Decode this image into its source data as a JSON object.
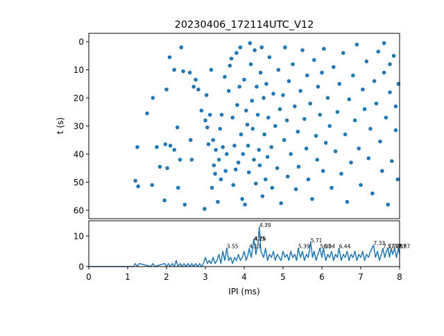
{
  "chart_data": [
    {
      "type": "scatter",
      "title": "20230406_172114UTC_V12",
      "ylabel": "t (s)",
      "xlim": [
        0,
        8
      ],
      "ylim": [
        63,
        -3
      ],
      "yticks": [
        0,
        10,
        20,
        30,
        40,
        50,
        60
      ],
      "color": "#1f77b4",
      "points": [
        [
          1.2,
          49.5
        ],
        [
          1.25,
          37.5
        ],
        [
          1.27,
          51.5
        ],
        [
          1.5,
          25.5
        ],
        [
          1.65,
          20
        ],
        [
          1.63,
          51
        ],
        [
          1.75,
          37.5
        ],
        [
          1.83,
          44.5
        ],
        [
          1.95,
          56.5
        ],
        [
          1.97,
          36.5
        ],
        [
          2.0,
          17
        ],
        [
          2.02,
          45
        ],
        [
          2.08,
          5.5
        ],
        [
          2.1,
          37
        ],
        [
          2.2,
          38.5
        ],
        [
          2.2,
          10
        ],
        [
          2.28,
          30.5
        ],
        [
          2.3,
          52
        ],
        [
          2.35,
          42
        ],
        [
          2.38,
          2
        ],
        [
          2.43,
          10.5
        ],
        [
          2.47,
          58
        ],
        [
          2.6,
          11
        ],
        [
          2.62,
          35
        ],
        [
          2.65,
          42
        ],
        [
          2.7,
          16
        ],
        [
          2.75,
          13.5
        ],
        [
          2.82,
          17
        ],
        [
          2.9,
          24.5
        ],
        [
          2.98,
          59.5
        ],
        [
          3.0,
          28
        ],
        [
          3.03,
          19
        ],
        [
          3.05,
          30.5
        ],
        [
          3.08,
          36.5
        ],
        [
          3.12,
          26
        ],
        [
          3.15,
          10
        ],
        [
          3.17,
          52
        ],
        [
          3.2,
          35
        ],
        [
          3.22,
          44
        ],
        [
          3.25,
          47
        ],
        [
          3.27,
          38.5
        ],
        [
          3.32,
          57
        ],
        [
          3.35,
          42
        ],
        [
          3.38,
          31
        ],
        [
          3.4,
          49
        ],
        [
          3.42,
          26
        ],
        [
          3.45,
          37.5
        ],
        [
          3.5,
          12.5
        ],
        [
          3.52,
          46
        ],
        [
          3.55,
          40
        ],
        [
          3.6,
          17.5
        ],
        [
          3.63,
          8.5
        ],
        [
          3.67,
          6
        ],
        [
          3.7,
          27
        ],
        [
          3.72,
          51
        ],
        [
          3.75,
          37
        ],
        [
          3.78,
          45.5
        ],
        [
          3.8,
          4
        ],
        [
          3.82,
          22.5
        ],
        [
          3.85,
          43
        ],
        [
          3.88,
          16
        ],
        [
          3.9,
          2
        ],
        [
          3.92,
          33
        ],
        [
          3.95,
          56
        ],
        [
          3.97,
          40
        ],
        [
          4.0,
          13.5
        ],
        [
          4.02,
          58
        ],
        [
          4.05,
          24.5
        ],
        [
          4.08,
          29.5
        ],
        [
          4.1,
          37
        ],
        [
          4.12,
          46.5
        ],
        [
          4.15,
          0.5
        ],
        [
          4.17,
          8
        ],
        [
          4.2,
          21
        ],
        [
          4.22,
          31
        ],
        [
          4.25,
          42
        ],
        [
          4.27,
          3
        ],
        [
          4.3,
          50.5
        ],
        [
          4.32,
          16
        ],
        [
          4.35,
          26
        ],
        [
          4.38,
          38.5
        ],
        [
          4.4,
          44
        ],
        [
          4.42,
          11
        ],
        [
          4.45,
          2
        ],
        [
          4.47,
          55
        ],
        [
          4.5,
          20
        ],
        [
          4.52,
          33
        ],
        [
          4.55,
          49
        ],
        [
          4.57,
          15
        ],
        [
          4.6,
          41
        ],
        [
          4.62,
          27
        ],
        [
          4.65,
          5.5
        ],
        [
          4.7,
          37.5
        ],
        [
          4.72,
          52
        ],
        [
          4.75,
          18.5
        ],
        [
          4.8,
          30
        ],
        [
          4.85,
          45
        ],
        [
          4.88,
          10
        ],
        [
          4.92,
          24
        ],
        [
          4.95,
          57.5
        ],
        [
          5.0,
          19
        ],
        [
          5.03,
          35
        ],
        [
          5.05,
          2
        ],
        [
          5.1,
          28
        ],
        [
          5.12,
          48
        ],
        [
          5.15,
          14
        ],
        [
          5.2,
          40
        ],
        [
          5.25,
          8
        ],
        [
          5.3,
          23
        ],
        [
          5.33,
          52.5
        ],
        [
          5.38,
          32
        ],
        [
          5.4,
          44.5
        ],
        [
          5.45,
          17.5
        ],
        [
          5.5,
          3
        ],
        [
          5.55,
          27.5
        ],
        [
          5.6,
          38
        ],
        [
          5.62,
          12
        ],
        [
          5.65,
          49
        ],
        [
          5.7,
          22
        ],
        [
          5.75,
          56
        ],
        [
          5.8,
          6.5
        ],
        [
          5.85,
          33.5
        ],
        [
          5.88,
          42
        ],
        [
          5.9,
          16
        ],
        [
          5.95,
          26
        ],
        [
          6.0,
          11
        ],
        [
          6.03,
          46
        ],
        [
          6.05,
          2.5
        ],
        [
          6.1,
          36
        ],
        [
          6.15,
          20
        ],
        [
          6.2,
          30
        ],
        [
          6.25,
          52
        ],
        [
          6.3,
          9
        ],
        [
          6.35,
          39
        ],
        [
          6.4,
          25
        ],
        [
          6.45,
          15
        ],
        [
          6.5,
          47
        ],
        [
          6.55,
          4
        ],
        [
          6.6,
          33
        ],
        [
          6.65,
          57
        ],
        [
          6.7,
          20.5
        ],
        [
          6.75,
          43
        ],
        [
          6.8,
          12
        ],
        [
          6.85,
          28
        ],
        [
          6.9,
          1
        ],
        [
          6.95,
          38
        ],
        [
          7.0,
          51
        ],
        [
          7.05,
          17
        ],
        [
          7.1,
          24
        ],
        [
          7.15,
          7
        ],
        [
          7.2,
          41.5
        ],
        [
          7.25,
          31
        ],
        [
          7.3,
          54
        ],
        [
          7.35,
          14
        ],
        [
          7.4,
          22
        ],
        [
          7.45,
          3.5
        ],
        [
          7.5,
          35.5
        ],
        [
          7.55,
          46
        ],
        [
          7.6,
          11
        ],
        [
          7.65,
          27
        ],
        [
          7.7,
          58
        ],
        [
          7.75,
          18
        ],
        [
          7.8,
          42.5
        ],
        [
          7.85,
          5
        ],
        [
          7.9,
          31.5
        ],
        [
          7.95,
          49
        ],
        [
          7.97,
          15
        ],
        [
          7.6,
          0.5
        ],
        [
          7.75,
          8
        ],
        [
          7.9,
          23
        ]
      ]
    },
    {
      "type": "line",
      "xlabel": "IPI (ms)",
      "xlim": [
        0,
        8
      ],
      "ylim": [
        0,
        15
      ],
      "xticks": [
        0,
        1,
        2,
        3,
        4,
        5,
        6,
        7,
        8
      ],
      "yticks": [
        0,
        10
      ],
      "color": "#1f77b4",
      "peaks": [
        {
          "x": 3.55,
          "y": 6.0,
          "label": "3.55"
        },
        {
          "x": 4.13,
          "y": 6.0,
          "label": "4.13"
        },
        {
          "x": 4.25,
          "y": 8.5,
          "label": "4.25"
        },
        {
          "x": 4.26,
          "y": 8.5,
          "label": "4.26"
        },
        {
          "x": 4.39,
          "y": 13.0,
          "label": "4.39"
        },
        {
          "x": 5.39,
          "y": 6.0,
          "label": "5.39"
        },
        {
          "x": 5.71,
          "y": 8.0,
          "label": "5.71"
        },
        {
          "x": 5.95,
          "y": 6.0,
          "label": "5.95"
        },
        {
          "x": 6.04,
          "y": 6.0,
          "label": "6.04"
        },
        {
          "x": 6.44,
          "y": 6.0,
          "label": "6.44"
        },
        {
          "x": 7.33,
          "y": 7.0,
          "label": "7.33"
        },
        {
          "x": 7.57,
          "y": 6.0,
          "label": "7.57"
        },
        {
          "x": 7.7,
          "y": 6.0,
          "label": "7.70"
        },
        {
          "x": 7.78,
          "y": 6.0,
          "label": "7.78"
        },
        {
          "x": 7.87,
          "y": 6.0,
          "label": "7.87"
        },
        {
          "x": 7.97,
          "y": 6.0,
          "label": "7.97"
        }
      ],
      "x": [
        0,
        1.15,
        1.2,
        1.25,
        1.3,
        1.6,
        1.65,
        1.7,
        1.95,
        2.0,
        2.05,
        2.1,
        2.15,
        2.2,
        2.25,
        2.3,
        2.35,
        2.4,
        2.45,
        2.5,
        2.55,
        2.6,
        2.65,
        2.7,
        2.75,
        2.8,
        2.85,
        2.9,
        2.95,
        3.0,
        3.05,
        3.1,
        3.15,
        3.2,
        3.25,
        3.3,
        3.35,
        3.4,
        3.45,
        3.5,
        3.55,
        3.6,
        3.65,
        3.7,
        3.75,
        3.8,
        3.85,
        3.9,
        3.95,
        4.0,
        4.05,
        4.1,
        4.13,
        4.18,
        4.25,
        4.3,
        4.35,
        4.39,
        4.43,
        4.5,
        4.55,
        4.6,
        4.65,
        4.7,
        4.75,
        4.8,
        4.85,
        4.9,
        4.95,
        5.0,
        5.05,
        5.1,
        5.15,
        5.2,
        5.25,
        5.3,
        5.35,
        5.39,
        5.45,
        5.5,
        5.55,
        5.6,
        5.65,
        5.71,
        5.76,
        5.8,
        5.85,
        5.9,
        5.95,
        6.0,
        6.04,
        6.1,
        6.15,
        6.2,
        6.25,
        6.3,
        6.35,
        6.4,
        6.44,
        6.5,
        6.55,
        6.6,
        6.65,
        6.7,
        6.75,
        6.8,
        6.85,
        6.9,
        6.95,
        7.0,
        7.05,
        7.1,
        7.15,
        7.2,
        7.25,
        7.33,
        7.38,
        7.43,
        7.48,
        7.53,
        7.57,
        7.62,
        7.66,
        7.7,
        7.74,
        7.78,
        7.82,
        7.87,
        7.92,
        7.97,
        8.0
      ],
      "y": [
        0,
        0,
        1,
        0,
        1,
        0,
        1,
        0,
        1,
        0,
        1,
        0,
        1,
        0,
        2,
        0,
        1,
        0,
        1,
        0,
        1,
        0,
        1,
        0,
        1,
        0,
        1,
        0,
        1,
        3,
        1,
        2,
        1,
        3,
        1,
        2,
        4,
        1,
        5,
        2,
        6,
        2,
        3,
        1,
        3,
        2,
        4,
        2,
        3,
        5,
        2,
        4,
        6,
        3,
        9,
        4,
        7,
        13,
        5,
        3,
        6,
        2,
        4,
        3,
        5,
        2,
        4,
        3,
        2,
        5,
        3,
        4,
        2,
        5,
        3,
        4,
        2,
        6,
        3,
        5,
        2,
        4,
        3,
        8,
        3,
        5,
        2,
        4,
        6,
        3,
        6,
        2,
        4,
        3,
        5,
        2,
        4,
        3,
        6,
        2,
        4,
        3,
        5,
        2,
        4,
        3,
        5,
        2,
        4,
        3,
        5,
        2,
        4,
        3,
        5,
        7,
        3,
        5,
        2,
        4,
        6,
        3,
        5,
        6,
        3,
        6,
        4,
        6,
        3,
        6,
        4
      ]
    }
  ]
}
